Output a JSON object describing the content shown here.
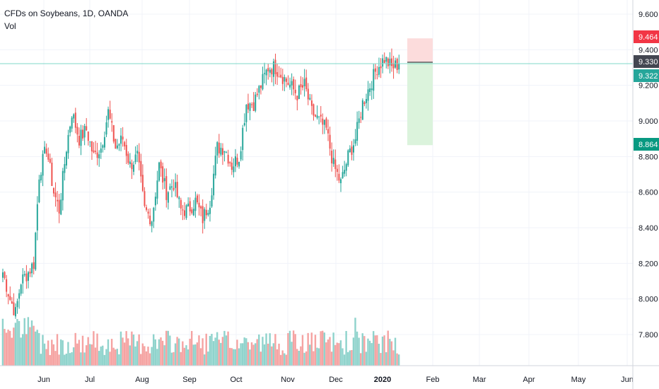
{
  "legend": {
    "title": "CFDs on Soybeans, 1D, OANDA",
    "volume_label": "Vol"
  },
  "colors": {
    "up": "#26a69a",
    "down": "#ef5350",
    "up_vol": "#8fd3cc",
    "down_vol": "#f5a3a2",
    "last_price_line": "#7fd8c9",
    "stop_zone": "#fcdcdc",
    "target_zone": "#dbf3dc",
    "stop_tag": "#f23645",
    "target_tag": "#089981",
    "entry_tag": "#434651",
    "last_tag": "#26a69a"
  },
  "chart_data": {
    "type": "candlestick",
    "instrument": "CFDs on Soybeans",
    "interval": "1D",
    "source": "OANDA",
    "ylim": [
      7.6,
      9.65
    ],
    "y_ticks": [
      "9.600",
      "9.400",
      "9.200",
      "9.000",
      "8.800",
      "8.600",
      "8.400",
      "8.200",
      "8.000",
      "7.800"
    ],
    "y_tick_values": [
      9.6,
      9.4,
      9.2,
      9.0,
      8.8,
      8.6,
      8.4,
      8.2,
      8.0,
      7.8
    ],
    "x_ticks": [
      "Jun",
      "Jul",
      "Aug",
      "Sep",
      "Oct",
      "Nov",
      "Dec",
      "2020",
      "Feb",
      "Mar",
      "Apr",
      "May",
      "Jun"
    ],
    "series_anchor_closes": [
      [
        0,
        8.15
      ],
      [
        4,
        8.0
      ],
      [
        7,
        7.92
      ],
      [
        10,
        8.1
      ],
      [
        14,
        8.15
      ],
      [
        17,
        8.2
      ],
      [
        20,
        8.7
      ],
      [
        24,
        8.85
      ],
      [
        28,
        8.6
      ],
      [
        31,
        8.5
      ],
      [
        35,
        8.85
      ],
      [
        38,
        9.05
      ],
      [
        42,
        8.9
      ],
      [
        46,
        8.95
      ],
      [
        50,
        8.8
      ],
      [
        54,
        8.85
      ],
      [
        58,
        9.05
      ],
      [
        62,
        8.85
      ],
      [
        66,
        8.9
      ],
      [
        70,
        8.75
      ],
      [
        74,
        8.8
      ],
      [
        78,
        8.5
      ],
      [
        82,
        8.45
      ],
      [
        86,
        8.75
      ],
      [
        90,
        8.6
      ],
      [
        94,
        8.65
      ],
      [
        98,
        8.5
      ],
      [
        102,
        8.5
      ],
      [
        106,
        8.55
      ],
      [
        110,
        8.45
      ],
      [
        114,
        8.55
      ],
      [
        118,
        8.85
      ],
      [
        122,
        8.85
      ],
      [
        126,
        8.75
      ],
      [
        130,
        8.8
      ],
      [
        134,
        9.1
      ],
      [
        138,
        9.1
      ],
      [
        142,
        9.2
      ],
      [
        146,
        9.3
      ],
      [
        150,
        9.3
      ],
      [
        154,
        9.25
      ],
      [
        158,
        9.2
      ],
      [
        162,
        9.15
      ],
      [
        166,
        9.2
      ],
      [
        170,
        9.05
      ],
      [
        174,
        9.0
      ],
      [
        178,
        8.95
      ],
      [
        182,
        8.75
      ],
      [
        186,
        8.65
      ],
      [
        190,
        8.8
      ],
      [
        194,
        8.9
      ],
      [
        198,
        9.1
      ],
      [
        202,
        9.2
      ],
      [
        206,
        9.3
      ],
      [
        210,
        9.35
      ],
      [
        214,
        9.3
      ],
      [
        218,
        9.32
      ]
    ],
    "last_price": "9.330",
    "position_tool": {
      "stop": "9.464",
      "entry": "9.330",
      "target": "8.864",
      "current": "9.322"
    },
    "volume": true
  }
}
